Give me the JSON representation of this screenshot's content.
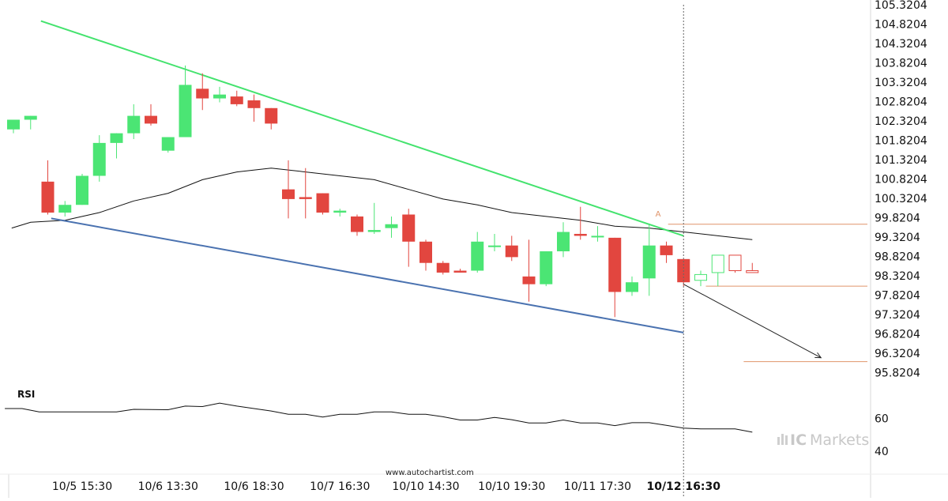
{
  "chart_data": {
    "type": "candlestick",
    "instrument_panel": {
      "y_ticks": [
        "105.3204",
        "104.8204",
        "104.3204",
        "103.8204",
        "103.3204",
        "102.8204",
        "102.3204",
        "101.8204",
        "101.3204",
        "100.8204",
        "100.3204",
        "99.8204",
        "99.3204",
        "98.8204",
        "98.3204",
        "97.8204",
        "97.3204",
        "96.8204",
        "96.3204",
        "95.8204"
      ],
      "ylim": [
        95.5,
        105.4
      ],
      "x_ticks": [
        {
          "label": "10/5 15:30",
          "index": 4,
          "bold": false
        },
        {
          "label": "10/6 13:30",
          "index": 9,
          "bold": false
        },
        {
          "label": "10/6 18:30",
          "index": 14,
          "bold": false
        },
        {
          "label": "10/7 16:30",
          "index": 19,
          "bold": false
        },
        {
          "label": "10/10 14:30",
          "index": 24,
          "bold": false
        },
        {
          "label": "10/10 19:30",
          "index": 29,
          "bold": false
        },
        {
          "label": "10/11 17:30",
          "index": 34,
          "bold": false
        },
        {
          "label": "10/12 16:30",
          "index": 39,
          "bold": true
        }
      ],
      "candles": [
        {
          "o": 102.1,
          "h": 102.35,
          "l": 102.0,
          "c": 102.35
        },
        {
          "o": 102.35,
          "h": 102.45,
          "l": 102.1,
          "c": 102.45
        },
        {
          "o": 100.75,
          "h": 101.3,
          "l": 99.9,
          "c": 99.95
        },
        {
          "o": 99.95,
          "h": 100.25,
          "l": 99.85,
          "c": 100.15
        },
        {
          "o": 100.15,
          "h": 100.95,
          "l": 100.15,
          "c": 100.9
        },
        {
          "o": 100.9,
          "h": 101.95,
          "l": 100.75,
          "c": 101.75
        },
        {
          "o": 101.75,
          "h": 102.0,
          "l": 101.35,
          "c": 102.0
        },
        {
          "o": 102.0,
          "h": 102.75,
          "l": 101.85,
          "c": 102.45
        },
        {
          "o": 102.45,
          "h": 102.75,
          "l": 102.2,
          "c": 102.25
        },
        {
          "o": 101.55,
          "h": 101.9,
          "l": 101.5,
          "c": 101.9
        },
        {
          "o": 101.9,
          "h": 103.75,
          "l": 101.9,
          "c": 103.25
        },
        {
          "o": 103.15,
          "h": 103.55,
          "l": 102.6,
          "c": 102.9
        },
        {
          "o": 102.9,
          "h": 103.2,
          "l": 102.8,
          "c": 103.0
        },
        {
          "o": 102.95,
          "h": 103.1,
          "l": 102.7,
          "c": 102.75
        },
        {
          "o": 102.85,
          "h": 103.0,
          "l": 102.3,
          "c": 102.65
        },
        {
          "o": 102.65,
          "h": 102.65,
          "l": 102.1,
          "c": 102.25
        },
        {
          "o": 100.55,
          "h": 101.3,
          "l": 99.8,
          "c": 100.3
        },
        {
          "o": 100.35,
          "h": 101.1,
          "l": 99.8,
          "c": 100.3
        },
        {
          "o": 100.45,
          "h": 100.45,
          "l": 99.9,
          "c": 99.95
        },
        {
          "o": 99.95,
          "h": 100.05,
          "l": 99.85,
          "c": 100.0
        },
        {
          "o": 99.85,
          "h": 99.9,
          "l": 99.35,
          "c": 99.45
        },
        {
          "o": 99.45,
          "h": 100.2,
          "l": 99.4,
          "c": 99.5
        },
        {
          "o": 99.55,
          "h": 99.85,
          "l": 99.3,
          "c": 99.65
        },
        {
          "o": 99.9,
          "h": 100.05,
          "l": 98.55,
          "c": 99.2
        },
        {
          "o": 99.2,
          "h": 99.25,
          "l": 98.45,
          "c": 98.65
        },
        {
          "o": 98.65,
          "h": 98.7,
          "l": 98.35,
          "c": 98.4
        },
        {
          "o": 98.45,
          "h": 98.5,
          "l": 98.4,
          "c": 98.4
        },
        {
          "o": 98.45,
          "h": 99.45,
          "l": 98.4,
          "c": 99.2
        },
        {
          "o": 99.1,
          "h": 99.4,
          "l": 98.95,
          "c": 99.1
        },
        {
          "o": 99.1,
          "h": 99.35,
          "l": 98.7,
          "c": 98.8
        },
        {
          "o": 98.3,
          "h": 99.25,
          "l": 97.65,
          "c": 98.1
        },
        {
          "o": 98.1,
          "h": 98.95,
          "l": 98.05,
          "c": 98.95
        },
        {
          "o": 98.95,
          "h": 99.7,
          "l": 98.8,
          "c": 99.45
        },
        {
          "o": 99.4,
          "h": 100.1,
          "l": 99.25,
          "c": 99.35
        },
        {
          "o": 99.35,
          "h": 99.6,
          "l": 99.2,
          "c": 99.35
        },
        {
          "o": 99.3,
          "h": 99.3,
          "l": 97.25,
          "c": 97.9
        },
        {
          "o": 97.9,
          "h": 98.3,
          "l": 97.8,
          "c": 98.15
        },
        {
          "o": 98.25,
          "h": 99.65,
          "l": 97.8,
          "c": 99.1
        },
        {
          "o": 99.1,
          "h": 99.2,
          "l": 98.65,
          "c": 98.85
        },
        {
          "o": 98.75,
          "h": 98.75,
          "l": 98.05,
          "c": 98.15
        },
        {
          "o": 98.2,
          "h": 98.45,
          "l": 98.05,
          "c": 98.35
        },
        {
          "o": 98.4,
          "h": 98.85,
          "l": 98.05,
          "c": 98.85
        },
        {
          "o": 98.85,
          "h": 98.85,
          "l": 98.4,
          "c": 98.45
        },
        {
          "o": 98.45,
          "h": 98.65,
          "l": 98.4,
          "c": 98.4
        }
      ],
      "hollow_from_index": 40,
      "moving_average": [
        {
          "i": -0.1,
          "v": 99.55
        },
        {
          "i": 1,
          "v": 99.7
        },
        {
          "i": 3,
          "v": 99.75
        },
        {
          "i": 5,
          "v": 99.95
        },
        {
          "i": 7,
          "v": 100.25
        },
        {
          "i": 9,
          "v": 100.45
        },
        {
          "i": 11,
          "v": 100.8
        },
        {
          "i": 13,
          "v": 101.0
        },
        {
          "i": 15,
          "v": 101.1
        },
        {
          "i": 17,
          "v": 101.0
        },
        {
          "i": 19,
          "v": 100.9
        },
        {
          "i": 21,
          "v": 100.8
        },
        {
          "i": 23,
          "v": 100.55
        },
        {
          "i": 25,
          "v": 100.3
        },
        {
          "i": 27,
          "v": 100.15
        },
        {
          "i": 29,
          "v": 99.95
        },
        {
          "i": 31,
          "v": 99.85
        },
        {
          "i": 33,
          "v": 99.75
        },
        {
          "i": 35,
          "v": 99.6
        },
        {
          "i": 37,
          "v": 99.55
        },
        {
          "i": 39,
          "v": 99.45
        },
        {
          "i": 41,
          "v": 99.35
        },
        {
          "i": 43,
          "v": 99.25
        }
      ],
      "resistance_line": {
        "start": {
          "i": 1.6,
          "v": 104.9
        },
        "end": {
          "i": 39,
          "v": 99.35
        },
        "color": "#44e36e"
      },
      "support_line": {
        "start": {
          "i": 2.2,
          "v": 99.8
        },
        "end": {
          "i": 39,
          "v": 96.85
        },
        "color": "#4a72b0"
      },
      "forecast_arrow": {
        "start": {
          "i": 39,
          "v": 98.1
        },
        "end": {
          "i": 47,
          "v": 96.2
        }
      },
      "level_lines": [
        {
          "from_i": 38.1,
          "v": 99.65
        },
        {
          "from_i": 40.3,
          "v": 98.05
        },
        {
          "from_i": 42.5,
          "v": 96.1
        }
      ],
      "marker": {
        "label": "A",
        "i": 37.5,
        "v": 99.85
      },
      "cursor_index": 39,
      "bull_color": "#4be574",
      "bear_color": "#e2463f"
    },
    "rsi_panel": {
      "label": "RSI",
      "y_ticks": [
        60,
        40
      ],
      "ylim": [
        33,
        75
      ],
      "values": [
        {
          "i": -0.5,
          "v": 66
        },
        {
          "i": 0.5,
          "v": 66
        },
        {
          "i": 1.5,
          "v": 64
        },
        {
          "i": 3,
          "v": 64
        },
        {
          "i": 6,
          "v": 64
        },
        {
          "i": 7,
          "v": 65.5
        },
        {
          "i": 9,
          "v": 65.3
        },
        {
          "i": 10,
          "v": 67.5
        },
        {
          "i": 11,
          "v": 67.2
        },
        {
          "i": 12,
          "v": 69.3
        },
        {
          "i": 13,
          "v": 67.5
        },
        {
          "i": 14,
          "v": 66
        },
        {
          "i": 15,
          "v": 64.5
        },
        {
          "i": 16,
          "v": 62.5
        },
        {
          "i": 17,
          "v": 62.5
        },
        {
          "i": 18,
          "v": 60.8
        },
        {
          "i": 19,
          "v": 62.5
        },
        {
          "i": 20,
          "v": 62.5
        },
        {
          "i": 21,
          "v": 64
        },
        {
          "i": 22,
          "v": 64
        },
        {
          "i": 23,
          "v": 62.5
        },
        {
          "i": 24,
          "v": 62.5
        },
        {
          "i": 25,
          "v": 61
        },
        {
          "i": 26,
          "v": 59
        },
        {
          "i": 27,
          "v": 59
        },
        {
          "i": 28,
          "v": 60.6
        },
        {
          "i": 29,
          "v": 59.2
        },
        {
          "i": 30,
          "v": 57.2
        },
        {
          "i": 31,
          "v": 57.2
        },
        {
          "i": 32,
          "v": 59
        },
        {
          "i": 33,
          "v": 57.2
        },
        {
          "i": 34,
          "v": 57.2
        },
        {
          "i": 35,
          "v": 55.6
        },
        {
          "i": 36,
          "v": 57.4
        },
        {
          "i": 37,
          "v": 57.4
        },
        {
          "i": 38,
          "v": 55.8
        },
        {
          "i": 39,
          "v": 54.1
        },
        {
          "i": 40,
          "v": 53.6
        },
        {
          "i": 42,
          "v": 53.6
        },
        {
          "i": 43,
          "v": 51.6
        }
      ]
    }
  },
  "watermark": "www.autochartist.com",
  "brand": {
    "ic": "IC",
    "markets": "Markets"
  }
}
